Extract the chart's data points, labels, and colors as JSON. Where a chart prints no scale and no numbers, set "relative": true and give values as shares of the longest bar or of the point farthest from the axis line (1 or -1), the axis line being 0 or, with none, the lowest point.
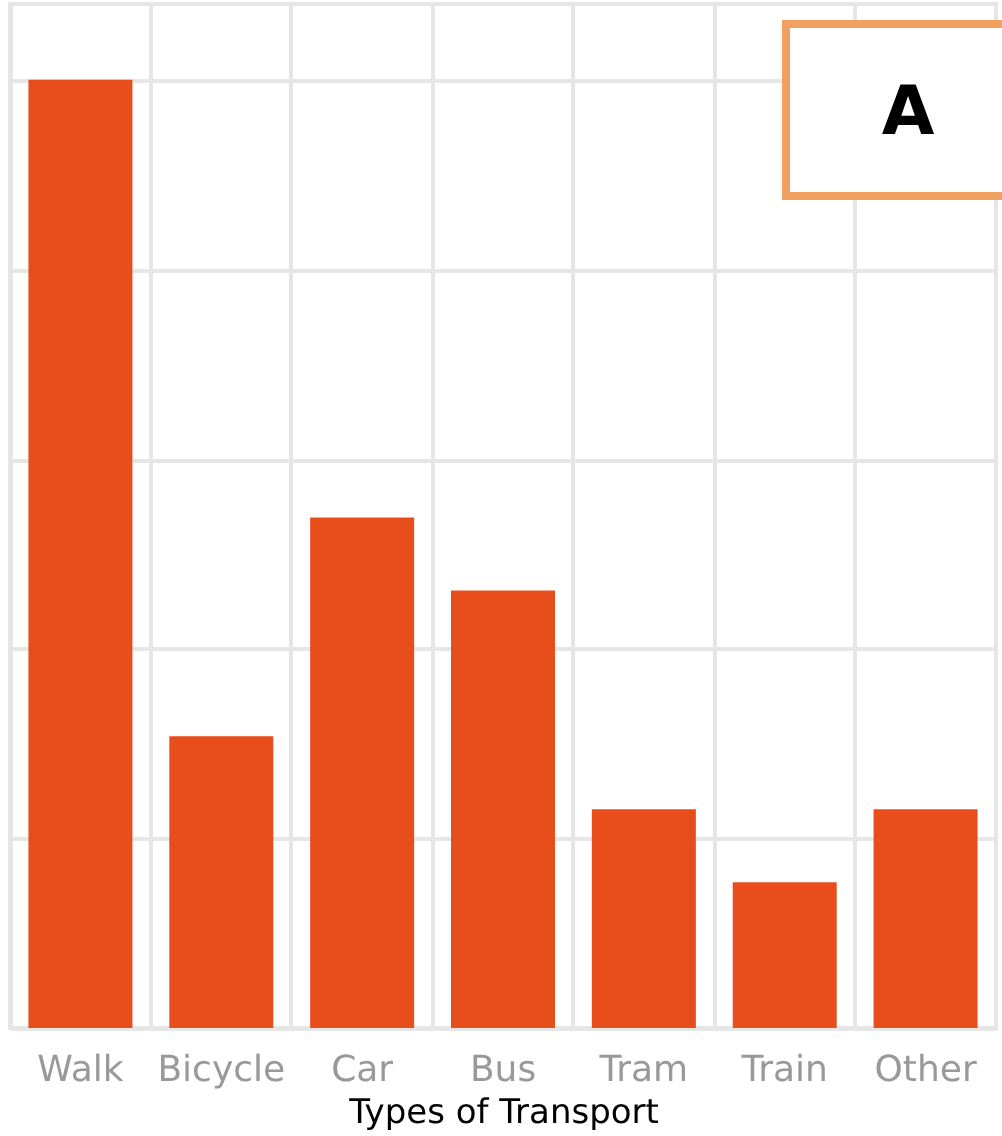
{
  "chart_data": {
    "type": "bar",
    "relative": true,
    "xlabel": "Types of Transport",
    "categories": [
      "Walk",
      "Bicycle",
      "Car",
      "Bus",
      "Tram",
      "Train",
      "Other"
    ],
    "values": [
      1,
      0.3077,
      0.5385,
      0.4615,
      0.2308,
      0.1538,
      0.2308
    ],
    "color": "#e84e1b",
    "grid": true,
    "annotations": [
      "A"
    ]
  }
}
